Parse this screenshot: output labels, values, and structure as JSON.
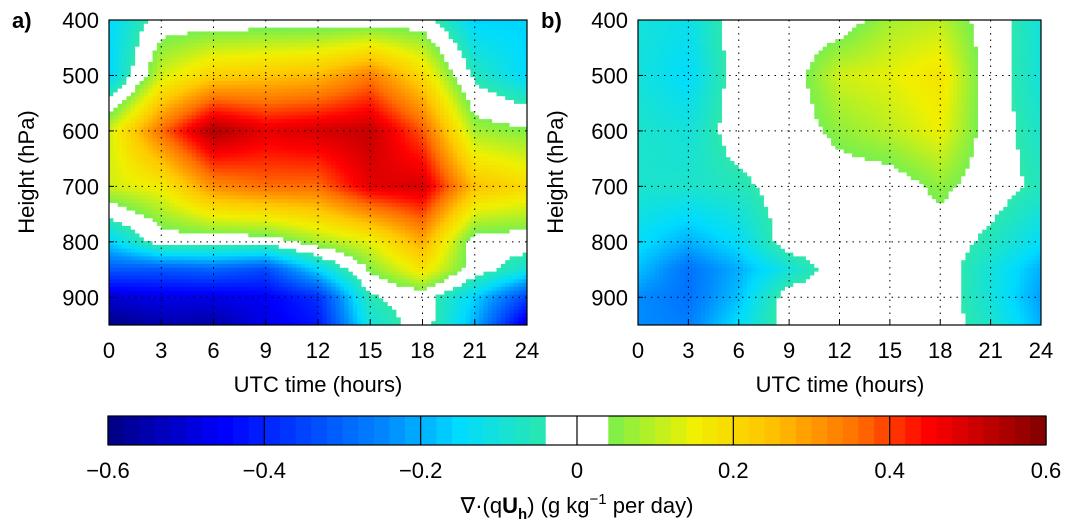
{
  "chart_data": [
    {
      "type": "heatmap",
      "panel_label": "a)",
      "xlabel": "UTC time (hours)",
      "ylabel": "Height (hPa)",
      "x": [
        0,
        3,
        6,
        9,
        12,
        15,
        18,
        21,
        24
      ],
      "y": [
        400,
        500,
        600,
        700,
        800,
        850,
        900,
        950
      ],
      "x_ticks": [
        "0",
        "3",
        "6",
        "9",
        "12",
        "15",
        "18",
        "21",
        "24"
      ],
      "y_ticks": [
        "400",
        "500",
        "600",
        "700",
        "800",
        "900"
      ],
      "xlim": [
        0,
        24
      ],
      "ylim": [
        950,
        400
      ],
      "grid": true,
      "z": [
        [
          -0.15,
          0.0,
          0.0,
          0.0,
          0.0,
          0.0,
          0.0,
          -0.16,
          -0.16
        ],
        [
          -0.16,
          0.12,
          0.22,
          0.24,
          0.26,
          0.34,
          0.2,
          -0.06,
          -0.15
        ],
        [
          0.12,
          0.36,
          0.55,
          0.48,
          0.5,
          0.52,
          0.38,
          0.08,
          0.05
        ],
        [
          0.12,
          0.16,
          0.32,
          0.36,
          0.36,
          0.48,
          0.5,
          0.25,
          0.2
        ],
        [
          -0.16,
          0.0,
          0.0,
          0.0,
          0.08,
          0.14,
          0.28,
          0.0,
          0.0
        ],
        [
          -0.32,
          -0.32,
          -0.3,
          -0.34,
          -0.15,
          0.05,
          0.18,
          0.0,
          -0.1
        ],
        [
          -0.5,
          -0.48,
          -0.48,
          -0.46,
          -0.38,
          -0.05,
          0.0,
          -0.16,
          -0.35
        ],
        [
          -0.6,
          -0.55,
          -0.56,
          -0.48,
          -0.42,
          -0.1,
          0.0,
          -0.2,
          -0.5
        ]
      ]
    },
    {
      "type": "heatmap",
      "panel_label": "b)",
      "xlabel": "UTC time (hours)",
      "ylabel": "Height (hPa)",
      "x": [
        0,
        3,
        6,
        9,
        12,
        15,
        18,
        21,
        24
      ],
      "y": [
        400,
        500,
        600,
        700,
        800,
        850,
        900,
        950
      ],
      "x_ticks": [
        "0",
        "3",
        "6",
        "9",
        "12",
        "15",
        "18",
        "21",
        "24"
      ],
      "y_ticks": [
        "400",
        "500",
        "600",
        "700",
        "800",
        "900"
      ],
      "xlim": [
        0,
        24
      ],
      "ylim": [
        950,
        400
      ],
      "grid": true,
      "z": [
        [
          -0.1,
          -0.12,
          0.0,
          0.0,
          0.0,
          0.08,
          0.1,
          0.0,
          -0.1
        ],
        [
          -0.1,
          -0.15,
          0.0,
          0.0,
          0.12,
          0.14,
          0.18,
          0.0,
          -0.1
        ],
        [
          -0.08,
          -0.1,
          0.0,
          0.0,
          0.06,
          0.1,
          0.15,
          0.0,
          -0.08
        ],
        [
          -0.08,
          -0.08,
          -0.06,
          0.0,
          0.0,
          0.0,
          0.06,
          0.0,
          -0.06
        ],
        [
          -0.14,
          -0.2,
          -0.14,
          0.0,
          0.0,
          0.0,
          0.0,
          -0.06,
          -0.14
        ],
        [
          -0.18,
          -0.28,
          -0.2,
          -0.1,
          0.0,
          0.0,
          0.0,
          -0.1,
          -0.2
        ],
        [
          -0.24,
          -0.28,
          -0.18,
          0.0,
          0.0,
          0.0,
          0.0,
          -0.1,
          -0.22
        ],
        [
          -0.24,
          -0.26,
          -0.14,
          0.0,
          0.0,
          0.0,
          0.0,
          -0.08,
          -0.2
        ]
      ]
    }
  ],
  "colorbar": {
    "label_prefix": "∇·(q",
    "label_bold": "U",
    "label_sub": "h",
    "label_mid": ") (g kg",
    "label_sup": "−1",
    "label_suffix": " per day)",
    "range": [
      -0.6,
      0.6
    ],
    "ticks": [
      "−0.6",
      "−0.4",
      "−0.2",
      "0",
      "0.2",
      "0.4",
      "0.6"
    ],
    "white_band": [
      -0.04,
      0.04
    ]
  }
}
